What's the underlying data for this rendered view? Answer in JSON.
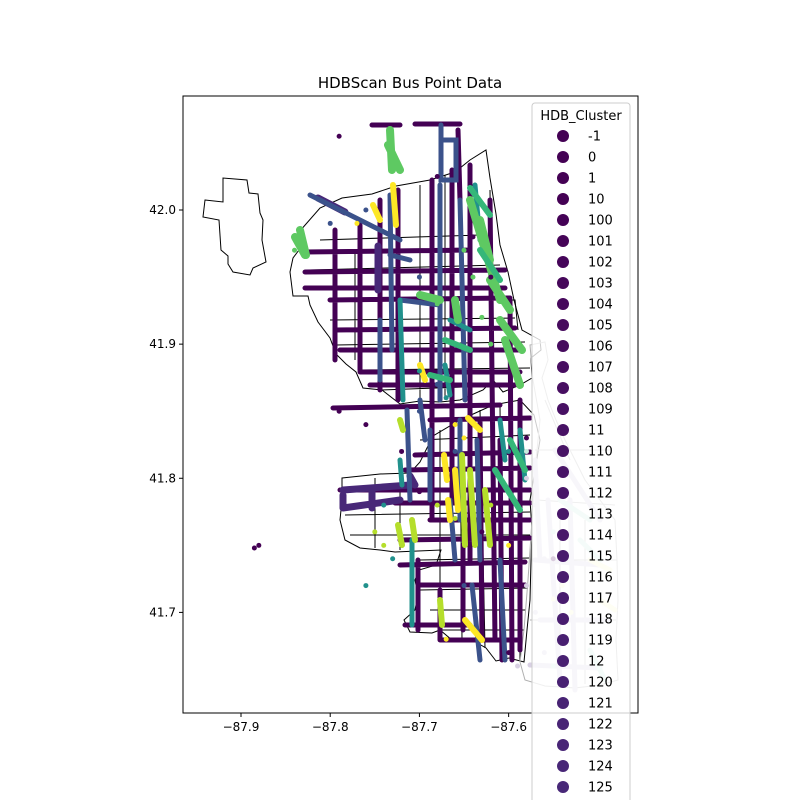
{
  "chart_data": {
    "type": "scatter",
    "title": "HDBScan Bus Point Data",
    "xlabel": "",
    "ylabel": "",
    "xlim": [
      -87.965,
      -87.455
    ],
    "ylim": [
      41.625,
      42.085
    ],
    "x_ticks": [
      "−87.9",
      "−87.8",
      "−87.7",
      "−87.6"
    ],
    "x_tick_values": [
      -87.9,
      -87.8,
      -87.7,
      -87.6
    ],
    "y_ticks": [
      "41.7",
      "41.8",
      "41.9",
      "42.0"
    ],
    "y_tick_values": [
      41.7,
      41.8,
      41.9,
      42.0
    ],
    "grid": false,
    "legend": {
      "title": "HDB_Cluster",
      "placement": "right",
      "entries": [
        {
          "label": "-1",
          "color": "#440154"
        },
        {
          "label": "0",
          "color": "#440154"
        },
        {
          "label": "1",
          "color": "#440154"
        },
        {
          "label": "10",
          "color": "#440154"
        },
        {
          "label": "100",
          "color": "#440256"
        },
        {
          "label": "101",
          "color": "#450457"
        },
        {
          "label": "102",
          "color": "#450559"
        },
        {
          "label": "103",
          "color": "#46075a"
        },
        {
          "label": "104",
          "color": "#46085c"
        },
        {
          "label": "105",
          "color": "#460a5d"
        },
        {
          "label": "106",
          "color": "#460b5e"
        },
        {
          "label": "107",
          "color": "#470d60"
        },
        {
          "label": "108",
          "color": "#470e61"
        },
        {
          "label": "109",
          "color": "#471063"
        },
        {
          "label": "11",
          "color": "#471164"
        },
        {
          "label": "110",
          "color": "#471365"
        },
        {
          "label": "111",
          "color": "#481467"
        },
        {
          "label": "112",
          "color": "#481668"
        },
        {
          "label": "113",
          "color": "#481769"
        },
        {
          "label": "114",
          "color": "#48186a"
        },
        {
          "label": "115",
          "color": "#481a6c"
        },
        {
          "label": "116",
          "color": "#481b6d"
        },
        {
          "label": "117",
          "color": "#481c6e"
        },
        {
          "label": "118",
          "color": "#481d6f"
        },
        {
          "label": "119",
          "color": "#481f70"
        },
        {
          "label": "12",
          "color": "#482071"
        },
        {
          "label": "120",
          "color": "#482173"
        },
        {
          "label": "121",
          "color": "#482374"
        },
        {
          "label": "122",
          "color": "#482475"
        },
        {
          "label": "123",
          "color": "#482576"
        },
        {
          "label": "124",
          "color": "#482677"
        },
        {
          "label": "125",
          "color": "#482878"
        }
      ]
    },
    "series": [
      {
        "color": "#440154",
        "points": [
          [
            -87.79,
            42.055
          ],
          [
            -87.68,
            42.025
          ],
          [
            -87.64,
            41.98
          ],
          [
            -87.62,
            41.95
          ],
          [
            -87.79,
            41.85
          ],
          [
            -87.88,
            41.75
          ],
          [
            -87.885,
            41.748
          ],
          [
            -87.6,
            41.67
          ],
          [
            -87.63,
            41.76
          ],
          [
            -87.7,
            41.79
          ],
          [
            -87.72,
            41.82
          ],
          [
            -87.76,
            41.84
          ],
          [
            -87.55,
            41.74
          ],
          [
            -87.58,
            41.83
          ]
        ]
      },
      {
        "color": "#3b528b",
        "points": [
          [
            -87.76,
            42.0
          ],
          [
            -87.8,
            41.99
          ],
          [
            -87.7,
            41.95
          ],
          [
            -87.7,
            41.85
          ],
          [
            -87.68,
            41.87
          ],
          [
            -87.66,
            41.82
          ],
          [
            -87.65,
            41.72
          ]
        ]
      },
      {
        "color": "#21918c",
        "points": [
          [
            -87.74,
            41.78
          ],
          [
            -87.73,
            41.74
          ],
          [
            -87.76,
            41.72
          ],
          [
            -87.7,
            41.88
          ],
          [
            -87.67,
            41.86
          ],
          [
            -87.6,
            41.82
          ]
        ]
      },
      {
        "color": "#5ec962",
        "points": [
          [
            -87.65,
            41.97
          ],
          [
            -87.64,
            41.95
          ],
          [
            -87.63,
            41.92
          ],
          [
            -87.62,
            41.9
          ],
          [
            -87.84,
            41.98
          ],
          [
            -87.84,
            41.97
          ],
          [
            -87.68,
            41.93
          ]
        ]
      },
      {
        "color": "#fde725",
        "points": [
          [
            -87.77,
            41.99
          ],
          [
            -87.66,
            41.84
          ],
          [
            -87.65,
            41.83
          ],
          [
            -87.67,
            41.68
          ],
          [
            -87.6,
            41.75
          ]
        ]
      },
      {
        "color": "#b5de2b",
        "points": [
          [
            -87.75,
            41.76
          ],
          [
            -87.74,
            41.75
          ],
          [
            -87.68,
            41.78
          ],
          [
            -87.66,
            41.77
          ],
          [
            -87.62,
            41.78
          ]
        ]
      },
      {
        "color": "#d8d0e3",
        "points": [
          [
            -87.58,
            41.8
          ],
          [
            -87.57,
            41.78
          ],
          [
            -87.56,
            41.74
          ],
          [
            -87.57,
            41.7
          ],
          [
            -87.56,
            41.67
          ],
          [
            -87.59,
            41.66
          ],
          [
            -87.58,
            41.72
          ]
        ]
      },
      {
        "color": "#c7ecde",
        "points": [
          [
            -87.58,
            41.82
          ],
          [
            -87.55,
            41.76
          ],
          [
            -87.55,
            41.66
          ]
        ]
      },
      {
        "color": "#fbf7c7",
        "points": [
          [
            -87.54,
            41.72
          ],
          [
            -87.53,
            41.7
          ],
          [
            -87.55,
            41.71
          ]
        ]
      }
    ]
  }
}
